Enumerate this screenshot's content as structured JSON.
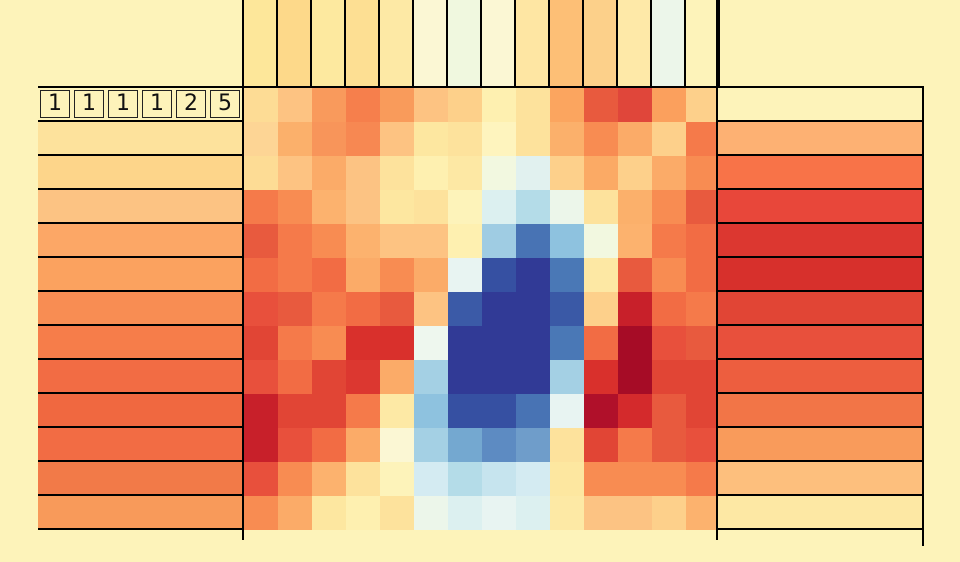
{
  "palette": {
    "background": "#fdf3ba",
    "grid_line": "#000000"
  },
  "row_clue_numbers": [
    "1",
    "1",
    "1",
    "1",
    "2",
    "5"
  ],
  "column_clue_colors": [
    "#fde79a",
    "#fdd98a",
    "#fde99f",
    "#fddf93",
    "#fde9a5",
    "#fbf7d4",
    "#f0f8df",
    "#fbf7d4",
    "#fee6a3",
    "#fdbf76",
    "#fcd08a",
    "#fee9a8",
    "#ecf6ea",
    "#fdf3ba"
  ],
  "left_row_colors": [
    "#fdf3ba",
    "#fde29c",
    "#fdd58a",
    "#fcc383",
    "#fca766",
    "#fba25f",
    "#f88d53",
    "#f67d4a",
    "#f26c44",
    "#f06840",
    "#f26c44",
    "#f27a48",
    "#f89a5a",
    "#fdf3ba"
  ],
  "right_row_colors": [
    "#fdf3ba",
    "#fdb173",
    "#f87348",
    "#e8473a",
    "#dc3730",
    "#d7302c",
    "#e14535",
    "#e8503c",
    "#ed5e3f",
    "#f27547",
    "#f99b5b",
    "#fdbf7d",
    "#fde8a4",
    "#fdf3ba"
  ],
  "board_colors": [
    [
      "#fddc95",
      "#fdc382",
      "#f99a5c",
      "#f67f4c",
      "#f99b5b",
      "#fdc382",
      "#fdd08a",
      "#fef0b0",
      "#fde29c",
      "#fba55f",
      "#e85a3e",
      "#e0463a",
      "#fba05d",
      "#fdd08b"
    ],
    [
      "#fdd595",
      "#fbb06b",
      "#f8955a",
      "#f78852",
      "#fdc382",
      "#fde7a0",
      "#fde29c",
      "#fef4be",
      "#fde29c",
      "#fbb06b",
      "#f88c52",
      "#fbab68",
      "#fdd08b",
      "#f57a4a"
    ],
    [
      "#fddc95",
      "#fdc382",
      "#fbab68",
      "#fcc383",
      "#fde29c",
      "#fef0b0",
      "#fde8a4",
      "#f2f8e0",
      "#e1f1ef",
      "#fdd08b",
      "#fbaa65",
      "#fdd08b",
      "#fbab68",
      "#f88c52"
    ],
    [
      "#f57a4a",
      "#f88c52",
      "#fcb26e",
      "#fcc383",
      "#fde7a0",
      "#fde29c",
      "#fdf3ba",
      "#dcf0f0",
      "#b4dce8",
      "#ecf6ea",
      "#fde29c",
      "#fbb06b",
      "#f88c52",
      "#e85a3e"
    ],
    [
      "#e85a3e",
      "#f57a4a",
      "#f88c52",
      "#fcb26e",
      "#fdc382",
      "#fdc382",
      "#fef0b0",
      "#9fcce3",
      "#4873b4",
      "#8ec2df",
      "#f2f8e0",
      "#fcb26e",
      "#f57a4a",
      "#f26c44"
    ],
    [
      "#f26c44",
      "#f57a4a",
      "#f26c44",
      "#fbab68",
      "#f88c52",
      "#fbab68",
      "#e8f4f2",
      "#3650a2",
      "#313a96",
      "#4a78b6",
      "#fde8a4",
      "#e85a3e",
      "#f88c52",
      "#f26c44"
    ],
    [
      "#e8503c",
      "#e85a3e",
      "#f57a4a",
      "#f26c44",
      "#e85a3e",
      "#fdc382",
      "#3b5aa7",
      "#313a96",
      "#313a96",
      "#3a59a6",
      "#fdd08b",
      "#c8202a",
      "#f26c44",
      "#f57a4a"
    ],
    [
      "#e14535",
      "#f57a4a",
      "#f88c52",
      "#d9302c",
      "#d9302c",
      "#eef7ee",
      "#313a96",
      "#313a96",
      "#313a96",
      "#4a78b6",
      "#f26c44",
      "#a60c26",
      "#e8503c",
      "#e85a3e"
    ],
    [
      "#e8503c",
      "#f26c44",
      "#e14535",
      "#dc3730",
      "#fbab68",
      "#a4d0e4",
      "#313a96",
      "#313a96",
      "#313a96",
      "#a4d0e4",
      "#d9302c",
      "#a60c26",
      "#e14535",
      "#e14535"
    ],
    [
      "#c8202a",
      "#e14535",
      "#e14535",
      "#f57a4a",
      "#fde9a5",
      "#8ec2df",
      "#3650a2",
      "#3650a2",
      "#4873b4",
      "#e8f4f2",
      "#b0102a",
      "#d42a2c",
      "#e85a3e",
      "#e14535"
    ],
    [
      "#c8202a",
      "#e8503c",
      "#f26c44",
      "#fbab68",
      "#fbf7d4",
      "#a4d0e4",
      "#74a8d0",
      "#5d8bc2",
      "#6f9dca",
      "#fde29c",
      "#e14535",
      "#f57a4a",
      "#e85a3e",
      "#e8503c"
    ],
    [
      "#e8503c",
      "#f88c52",
      "#fcb26e",
      "#fde29c",
      "#fdf3ba",
      "#d4ebf2",
      "#b4dce8",
      "#c6e4ee",
      "#d4ebf2",
      "#fde7a0",
      "#f88c52",
      "#f88c52",
      "#f88c52",
      "#f57a4a"
    ],
    [
      "#f88c52",
      "#fbab68",
      "#fde7a0",
      "#fef0b0",
      "#fde29c",
      "#ecf6ea",
      "#dcf0f0",
      "#e8f4f2",
      "#dcf0f0",
      "#fde9a5",
      "#fcc383",
      "#fcc383",
      "#fdd08b",
      "#fcb26e"
    ]
  ]
}
